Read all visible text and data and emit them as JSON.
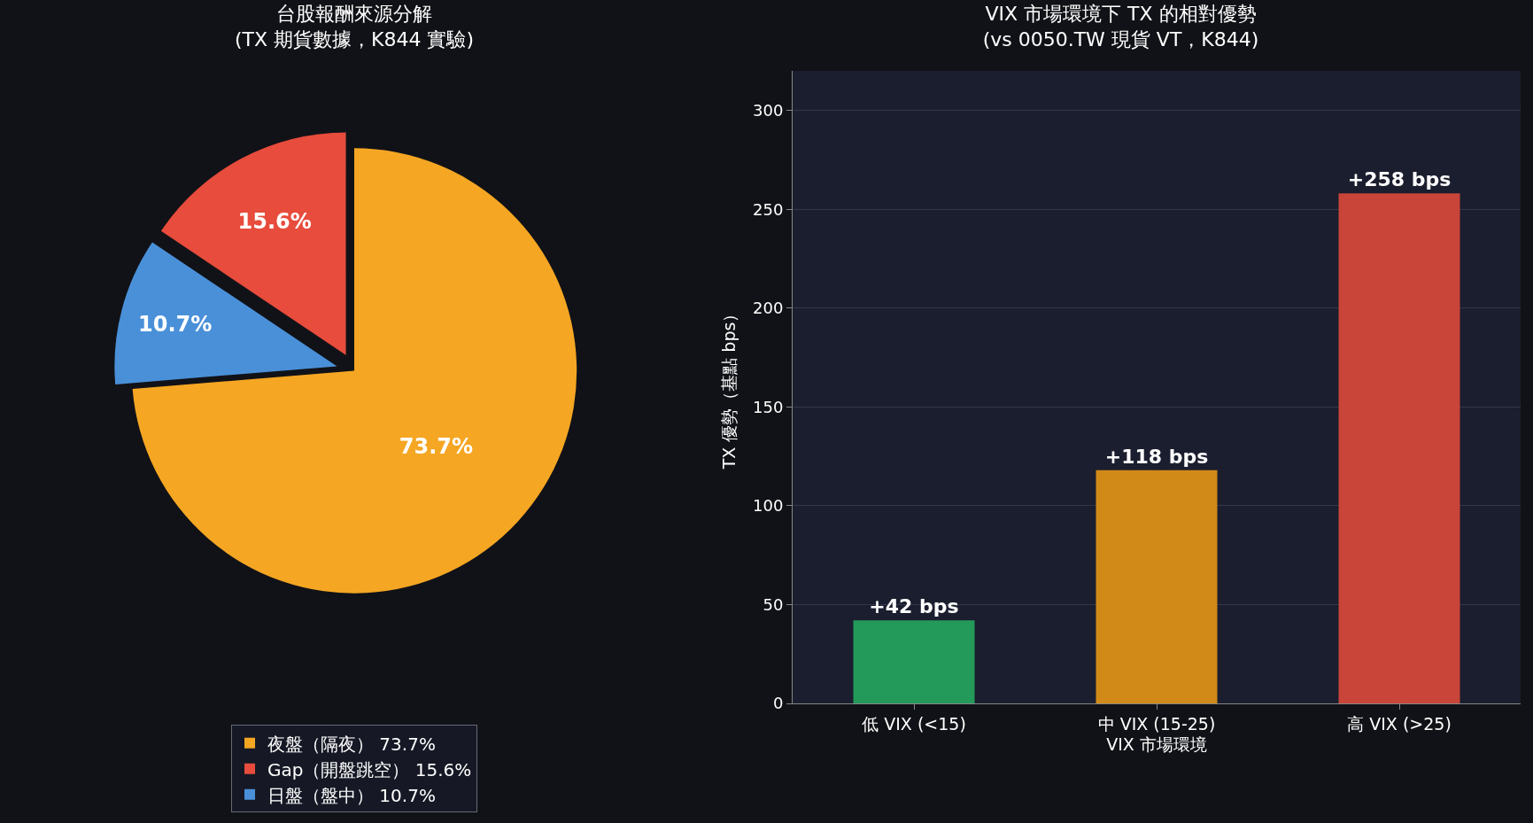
{
  "chart_data": [
    {
      "type": "pie",
      "title": "台股報酬來源分解\n(TX 期貨數據，K844 實驗)",
      "categories": [
        "夜盤（隔夜） 73.7%",
        "Gap（開盤跳空） 15.6%",
        "日盤（盤中） 10.7%"
      ],
      "values": [
        73.7,
        15.6,
        10.7
      ],
      "colors": [
        "#f5a623",
        "#e74c3c",
        "#4a90d9"
      ],
      "value_labels": [
        "73.7%",
        "15.6%",
        "10.7%"
      ],
      "legend": "bottom"
    },
    {
      "type": "bar",
      "title": "VIX 市場環境下 TX 的相對優勢\n(vs 0050.TW 現貨 VT，K844)",
      "categories": [
        "低 VIX (<15)",
        "中 VIX (15-25)",
        "高 VIX (>25)"
      ],
      "values": [
        42,
        118,
        258
      ],
      "colors": [
        "#23995a",
        "#d18a18",
        "#c9453a"
      ],
      "value_labels": [
        "+42 bps",
        "+118 bps",
        "+258 bps"
      ],
      "xlabel": "VIX 市場環境",
      "ylabel": "TX 優勢（基點 bps）",
      "ylim": [
        0,
        320
      ],
      "yticks": [
        0,
        50,
        100,
        150,
        200,
        250,
        300
      ],
      "grid": "y"
    }
  ]
}
